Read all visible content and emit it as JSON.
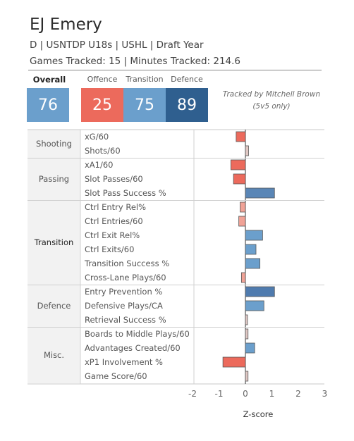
{
  "player": {
    "name": "EJ Emery",
    "line1": "D | USNTDP U18s | USHL | Draft Year",
    "line2": "Games Tracked: 15 | Minutes Tracked: 214.6"
  },
  "ratings": [
    {
      "label": "Overall",
      "value": "76",
      "color": "#6b9fcc"
    },
    {
      "label": "Offence",
      "value": "25",
      "color": "#ec6a5c"
    },
    {
      "label": "Transition",
      "value": "75",
      "color": "#6b9fcc"
    },
    {
      "label": "Defence",
      "value": "89",
      "color": "#2f5f8f"
    }
  ],
  "tracked_note": [
    "Tracked by Mitchell Brown",
    "(5v5 only)"
  ],
  "chart_data": {
    "type": "bar",
    "orientation": "horizontal",
    "xlabel": "Z-score",
    "xlim": [
      -2,
      3
    ],
    "xticks": [
      "-2",
      "-1",
      "0",
      "1",
      "2",
      "3"
    ],
    "groups": [
      {
        "name": "Shooting",
        "metrics": [
          {
            "label": "xG/60",
            "value": -0.35
          },
          {
            "label": "Shots/60",
            "value": 0.12
          }
        ]
      },
      {
        "name": "Passing",
        "metrics": [
          {
            "label": "xA1/60",
            "value": -0.55
          },
          {
            "label": "Slot Passes/60",
            "value": -0.45
          },
          {
            "label": "Slot Pass Success %",
            "value": 1.1
          }
        ]
      },
      {
        "name": "Transition",
        "metrics": [
          {
            "label": "Ctrl Entry Rel%",
            "value": -0.2
          },
          {
            "label": "Ctrl Entries/60",
            "value": -0.25
          },
          {
            "label": "Ctrl Exit Rel%",
            "value": 0.65
          },
          {
            "label": "Ctrl Exits/60",
            "value": 0.4
          },
          {
            "label": "Transition Success %",
            "value": 0.55
          },
          {
            "label": "Cross-Lane Plays/60",
            "value": -0.15
          }
        ]
      },
      {
        "name": "Defence",
        "metrics": [
          {
            "label": "Entry Prevention %",
            "value": 1.1
          },
          {
            "label": "Defensive Plays/CA",
            "value": 0.7
          },
          {
            "label": "Retrieval Success %",
            "value": 0.02
          }
        ]
      },
      {
        "name": "Misc.",
        "metrics": [
          {
            "label": "Boards to Middle Plays/60",
            "value": 0.1
          },
          {
            "label": "Advantages Created/60",
            "value": 0.35
          },
          {
            "label": "xP1 Involvement %",
            "value": -0.85
          },
          {
            "label": "Game Score/60",
            "value": 0.1
          }
        ]
      }
    ]
  }
}
